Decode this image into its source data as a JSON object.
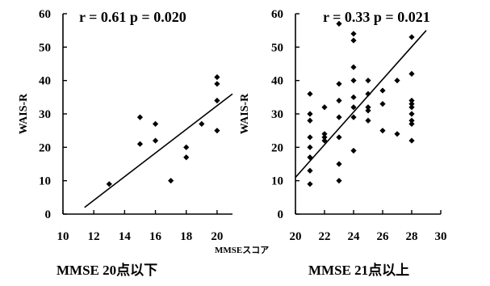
{
  "shared_xlabel": "MMSEスコア",
  "chart_data": [
    {
      "type": "scatter",
      "title": "",
      "annotation": "r = 0.61 p = 0.020",
      "caption": "MMSE 20点以下",
      "xlabel": "",
      "ylabel": "WAIS-R",
      "xlim": [
        10,
        21
      ],
      "ylim": [
        0,
        60
      ],
      "xticks": [
        10,
        12,
        14,
        16,
        18,
        20
      ],
      "yticks": [
        0,
        10,
        20,
        30,
        40,
        50,
        60
      ],
      "grid": false,
      "points": [
        {
          "x": 13,
          "y": 9
        },
        {
          "x": 15,
          "y": 21
        },
        {
          "x": 15,
          "y": 29
        },
        {
          "x": 16,
          "y": 22
        },
        {
          "x": 16,
          "y": 27
        },
        {
          "x": 17,
          "y": 10
        },
        {
          "x": 18,
          "y": 17
        },
        {
          "x": 18,
          "y": 20
        },
        {
          "x": 19,
          "y": 27
        },
        {
          "x": 20,
          "y": 25
        },
        {
          "x": 20,
          "y": 34
        },
        {
          "x": 20,
          "y": 39
        },
        {
          "x": 20,
          "y": 41
        }
      ],
      "trendline": {
        "x": [
          11.4,
          21
        ],
        "y": [
          2,
          36
        ]
      }
    },
    {
      "type": "scatter",
      "title": "",
      "annotation": "r = 0.33 p = 0.021",
      "caption": "MMSE 21点以上",
      "xlabel": "",
      "ylabel": "WAIS-R",
      "xlim": [
        20,
        30
      ],
      "ylim": [
        0,
        60
      ],
      "xticks": [
        20,
        22,
        24,
        26,
        28,
        30
      ],
      "yticks": [
        0,
        10,
        20,
        30,
        40,
        50,
        60
      ],
      "grid": false,
      "points": [
        {
          "x": 21,
          "y": 9
        },
        {
          "x": 21,
          "y": 13
        },
        {
          "x": 21,
          "y": 17
        },
        {
          "x": 21,
          "y": 20
        },
        {
          "x": 21,
          "y": 23
        },
        {
          "x": 21,
          "y": 28
        },
        {
          "x": 21,
          "y": 30
        },
        {
          "x": 21,
          "y": 36
        },
        {
          "x": 22,
          "y": 22
        },
        {
          "x": 22,
          "y": 23
        },
        {
          "x": 22,
          "y": 24
        },
        {
          "x": 22,
          "y": 32
        },
        {
          "x": 23,
          "y": 10
        },
        {
          "x": 23,
          "y": 15
        },
        {
          "x": 23,
          "y": 23
        },
        {
          "x": 23,
          "y": 29
        },
        {
          "x": 23,
          "y": 34
        },
        {
          "x": 23,
          "y": 39
        },
        {
          "x": 23,
          "y": 57
        },
        {
          "x": 24,
          "y": 19
        },
        {
          "x": 24,
          "y": 29
        },
        {
          "x": 24,
          "y": 32
        },
        {
          "x": 24,
          "y": 35
        },
        {
          "x": 24,
          "y": 40
        },
        {
          "x": 24,
          "y": 44
        },
        {
          "x": 24,
          "y": 52
        },
        {
          "x": 24,
          "y": 54
        },
        {
          "x": 25,
          "y": 28
        },
        {
          "x": 25,
          "y": 31
        },
        {
          "x": 25,
          "y": 32
        },
        {
          "x": 25,
          "y": 36
        },
        {
          "x": 25,
          "y": 40
        },
        {
          "x": 26,
          "y": 25
        },
        {
          "x": 26,
          "y": 33
        },
        {
          "x": 26,
          "y": 37
        },
        {
          "x": 27,
          "y": 24
        },
        {
          "x": 27,
          "y": 40
        },
        {
          "x": 28,
          "y": 22
        },
        {
          "x": 28,
          "y": 27
        },
        {
          "x": 28,
          "y": 28
        },
        {
          "x": 28,
          "y": 30
        },
        {
          "x": 28,
          "y": 32
        },
        {
          "x": 28,
          "y": 33
        },
        {
          "x": 28,
          "y": 34
        },
        {
          "x": 28,
          "y": 42
        },
        {
          "x": 28,
          "y": 53
        }
      ],
      "trendline": {
        "x": [
          20,
          29
        ],
        "y": [
          11,
          55
        ]
      }
    }
  ]
}
